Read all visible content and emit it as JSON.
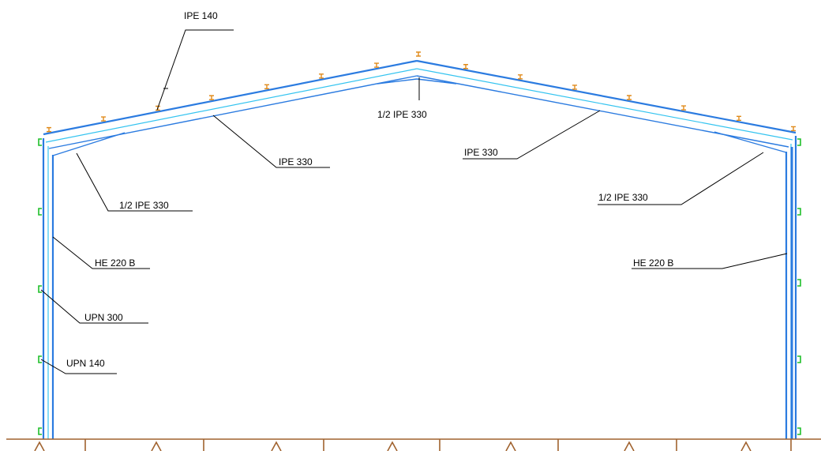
{
  "labels": {
    "top_purlin": "IPE 140",
    "ridge_haunch": "1/2 IPE 330",
    "left_rafter": "IPE 330",
    "right_rafter": "IPE 330",
    "left_haunch": "1/2 IPE 330",
    "right_haunch": "1/2 IPE 330",
    "left_column": "HE 220 B",
    "right_column": "HE 220 B",
    "left_rail_large": "UPN 300",
    "left_rail_small": "UPN 140"
  },
  "colors": {
    "beam_outer": "#2b7be0",
    "beam_inner": "#35c4f0",
    "ground": "#a0622e",
    "purlin": "#e08a1a",
    "rail": "#1fbf2a",
    "leader": "#000000"
  }
}
